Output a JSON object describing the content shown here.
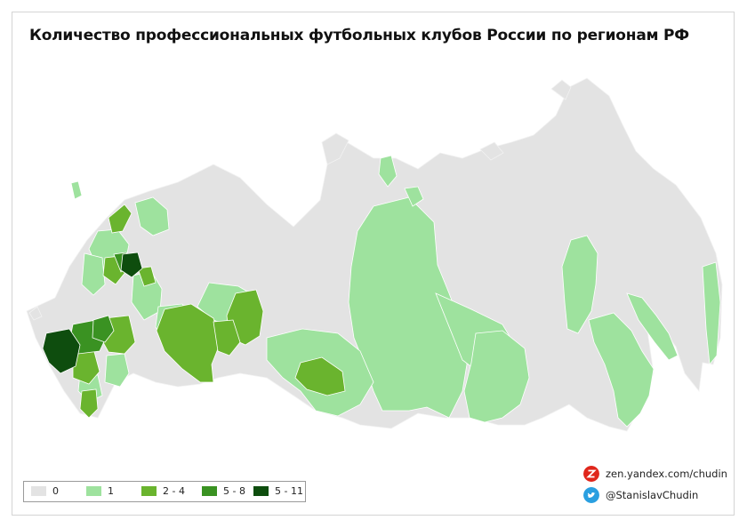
{
  "title": "Количество профессиональных футбольных клубов России по регионам РФ",
  "legend": [
    {
      "label": "0",
      "color": "#e3e3e3"
    },
    {
      "label": "1",
      "color": "#9ee29e"
    },
    {
      "label": "2 - 4",
      "color": "#6ab42e"
    },
    {
      "label": "5 - 8",
      "color": "#3a9222"
    },
    {
      "label": "5 - 11",
      "color": "#0e4d0e"
    }
  ],
  "credits": [
    {
      "label": "zen.yandex.com/chudin",
      "icon": "zen-icon",
      "color": "#e0261b"
    },
    {
      "label": "@StanislavChudin",
      "icon": "twitter-icon",
      "color": "#2a9fe0"
    }
  ]
}
